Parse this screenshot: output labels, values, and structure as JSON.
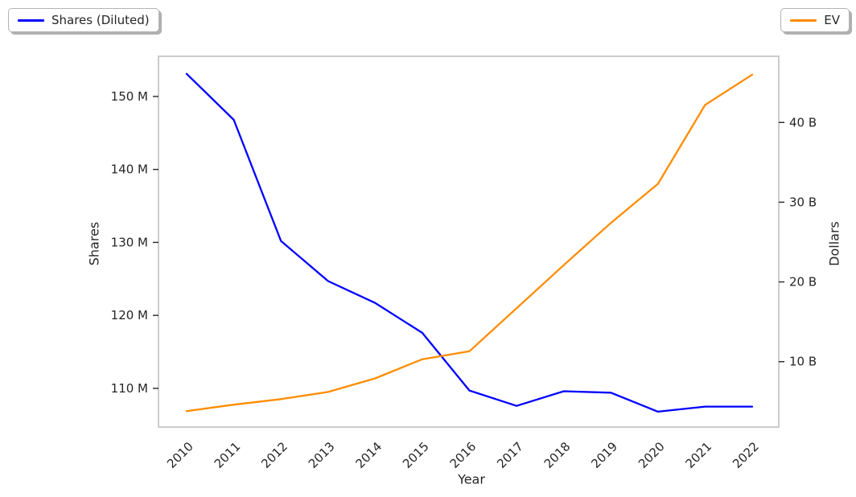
{
  "figure": {
    "background": "#ffffff",
    "plot_border_color": "#cccccc",
    "text_color": "#262626"
  },
  "chart_data": {
    "type": "line",
    "title": "",
    "xlabel": "Year",
    "x": [
      2010,
      2011,
      2012,
      2013,
      2014,
      2015,
      2016,
      2017,
      2018,
      2019,
      2020,
      2021,
      2022
    ],
    "x_tick_labels": [
      "2010",
      "2011",
      "2012",
      "2013",
      "2014",
      "2015",
      "2016",
      "2017",
      "2018",
      "2019",
      "2020",
      "2021",
      "2022"
    ],
    "series": [
      {
        "name": "Shares (Diluted)",
        "axis": "left",
        "color": "#0000ff",
        "values": [
          153.1,
          146.8,
          130.2,
          124.7,
          121.7,
          117.6,
          109.7,
          107.6,
          109.6,
          109.4,
          106.8,
          107.5,
          107.5
        ],
        "unit": "M (millions of shares)"
      },
      {
        "name": "EV",
        "axis": "right",
        "color": "#ff8c00",
        "values": [
          3.8,
          4.6,
          5.3,
          6.2,
          7.9,
          10.3,
          11.3,
          16.7,
          22.1,
          27.4,
          32.3,
          42.2,
          46.0
        ],
        "unit": "B (billions of dollars)"
      }
    ],
    "left_axis": {
      "label": "Shares",
      "ticks": [
        110,
        120,
        130,
        140,
        150
      ],
      "tick_labels": [
        "110 M",
        "120 M",
        "130 M",
        "140 M",
        "150 M"
      ],
      "range": [
        104.7,
        155.5
      ]
    },
    "right_axis": {
      "label": "Dollars",
      "ticks": [
        10,
        20,
        30,
        40
      ],
      "tick_labels": [
        "10 B",
        "20 B",
        "30 B",
        "40 B"
      ],
      "range": [
        1.8,
        48.3
      ]
    },
    "grid": false,
    "legend_position": "top corners, outside plot"
  }
}
